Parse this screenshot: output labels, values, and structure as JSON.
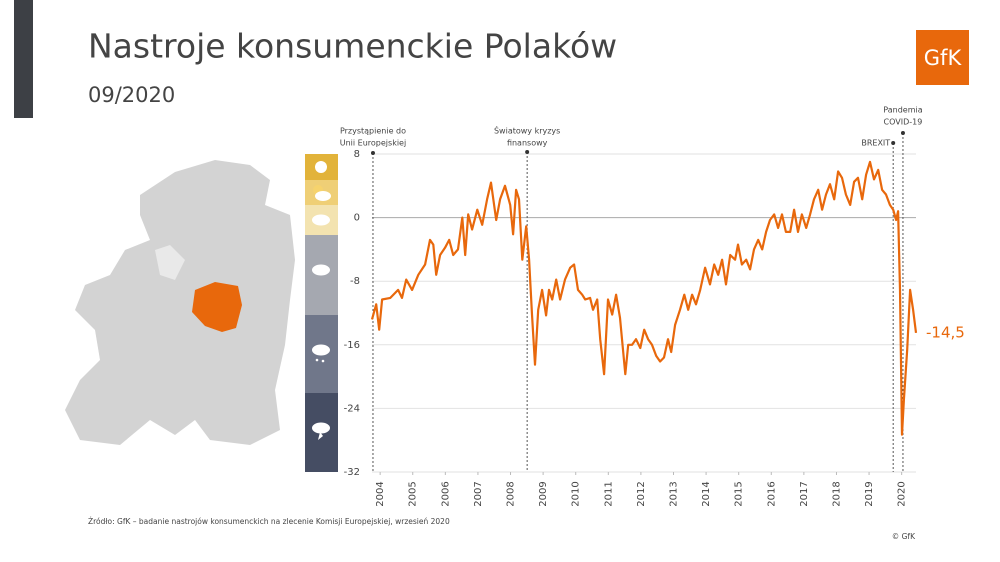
{
  "chart_data": {
    "type": "line",
    "title": "Nastroje konsumenckie Polaków",
    "subtitle": "09/2020",
    "logo": "GfK",
    "source": "Źródło: GfK – badanie nastrojów konsumenckich na zlecenie Komisji Europejskiej, wrzesień 2020",
    "copyright": "© GfK",
    "color": "#e8680c",
    "xlim": [
      2003.75,
      2020.44
    ],
    "ylim": [
      -32,
      8
    ],
    "yticks": [
      8,
      0,
      -8,
      -16,
      -24,
      -32
    ],
    "xticks": [
      2004,
      2005,
      2006,
      2007,
      2008,
      2009,
      2010,
      2011,
      2012,
      2013,
      2014,
      2015,
      2016,
      2017,
      2018,
      2019,
      2020
    ],
    "grid": true,
    "annotations": [
      {
        "x": 2003.78,
        "lines": [
          "Przystąpienie do",
          "Unii Europejskiej"
        ]
      },
      {
        "x": 2008.51,
        "lines": [
          "Światowy kryzys",
          "finansowy"
        ]
      },
      {
        "x": 2019.74,
        "lines": [
          "BREXIT"
        ]
      },
      {
        "x": 2020.04,
        "lines": [
          "Pandemia",
          "COVID-19"
        ]
      }
    ],
    "end_label": {
      "value": -14.5,
      "label": "-14,5"
    },
    "x": [
      2003.75,
      2003.88,
      2003.97,
      2004.06,
      2004.31,
      2004.55,
      2004.67,
      2004.8,
      2004.98,
      2005.17,
      2005.38,
      2005.53,
      2005.63,
      2005.72,
      2005.84,
      2005.99,
      2006.12,
      2006.24,
      2006.39,
      2006.52,
      2006.61,
      2006.7,
      2006.82,
      2006.98,
      2007.13,
      2007.28,
      2007.4,
      2007.56,
      2007.68,
      2007.83,
      2007.99,
      2008.08,
      2008.17,
      2008.26,
      2008.36,
      2008.48,
      2008.57,
      2008.66,
      2008.75,
      2008.85,
      2008.97,
      2009.09,
      2009.18,
      2009.28,
      2009.4,
      2009.52,
      2009.67,
      2009.83,
      2009.95,
      2010.07,
      2010.2,
      2010.29,
      2010.44,
      2010.53,
      2010.66,
      2010.75,
      2010.87,
      2010.99,
      2011.12,
      2011.24,
      2011.36,
      2011.42,
      2011.52,
      2011.61,
      2011.73,
      2011.85,
      2011.98,
      2012.1,
      2012.22,
      2012.34,
      2012.47,
      2012.59,
      2012.71,
      2012.83,
      2012.93,
      2013.05,
      2013.2,
      2013.33,
      2013.45,
      2013.57,
      2013.69,
      2013.82,
      2013.97,
      2014.12,
      2014.25,
      2014.37,
      2014.49,
      2014.61,
      2014.74,
      2014.89,
      2014.98,
      2015.1,
      2015.23,
      2015.35,
      2015.47,
      2015.6,
      2015.72,
      2015.84,
      2015.96,
      2016.09,
      2016.21,
      2016.33,
      2016.45,
      2016.58,
      2016.7,
      2016.82,
      2016.94,
      2017.07,
      2017.19,
      2017.31,
      2017.44,
      2017.56,
      2017.68,
      2017.8,
      2017.93,
      2018.05,
      2018.17,
      2018.29,
      2018.42,
      2018.54,
      2018.66,
      2018.79,
      2018.91,
      2019.03,
      2019.15,
      2019.28,
      2019.4,
      2019.52,
      2019.64,
      2019.74,
      2019.83,
      2019.89,
      2019.95,
      2020.01,
      2020.07,
      2020.17,
      2020.26,
      2020.35,
      2020.44
    ],
    "values": [
      -12.8,
      -10.9,
      -14.1,
      -10.3,
      -10.1,
      -9.1,
      -10.1,
      -7.8,
      -9.1,
      -7.2,
      -5.9,
      -2.8,
      -3.4,
      -7.2,
      -4.7,
      -3.8,
      -2.8,
      -4.7,
      -4.0,
      0,
      -4.7,
      0.4,
      -1.5,
      1.0,
      -0.9,
      2.3,
      4.4,
      -0.3,
      2.3,
      4.0,
      1.6,
      -2.1,
      3.5,
      2.3,
      -5.3,
      -1.1,
      -5.3,
      -12.2,
      -18.5,
      -11.6,
      -9.1,
      -12.3,
      -9.1,
      -10.3,
      -7.8,
      -10.3,
      -7.8,
      -6.3,
      -5.9,
      -9.1,
      -9.7,
      -10.3,
      -10.1,
      -11.6,
      -10.3,
      -15.3,
      -19.7,
      -10.3,
      -12.2,
      -9.7,
      -12.6,
      -15.3,
      -19.7,
      -16.0,
      -16.0,
      -15.3,
      -16.4,
      -14.1,
      -15.3,
      -16.0,
      -17.4,
      -18.1,
      -17.6,
      -15.3,
      -16.9,
      -13.5,
      -11.6,
      -9.7,
      -11.6,
      -9.7,
      -10.9,
      -9.1,
      -6.3,
      -8.4,
      -5.9,
      -7.2,
      -5.3,
      -8.4,
      -4.7,
      -5.3,
      -3.4,
      -5.9,
      -5.3,
      -6.5,
      -4.0,
      -2.8,
      -4.0,
      -1.8,
      -0.3,
      0.4,
      -1.3,
      0.4,
      -1.8,
      -1.8,
      1.0,
      -1.8,
      0.4,
      -1.3,
      0.4,
      2.3,
      3.5,
      1.0,
      2.9,
      4.2,
      2.3,
      5.8,
      5.0,
      2.9,
      1.6,
      4.5,
      5.0,
      2.3,
      5.4,
      7.0,
      4.8,
      6.0,
      3.5,
      2.9,
      1.6,
      1.0,
      -0.3,
      0.8,
      -9.1,
      -27.3,
      -22.9,
      -16.6,
      -9.1,
      -11.6,
      -14.5
    ]
  }
}
